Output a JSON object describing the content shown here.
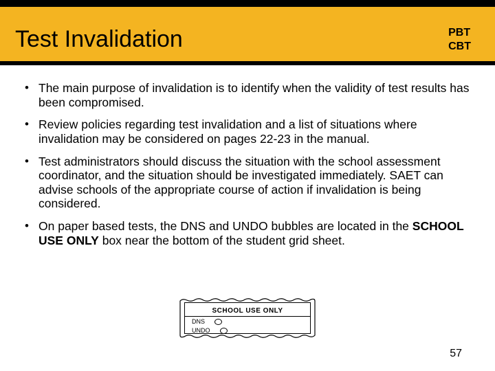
{
  "header": {
    "title": "Test Invalidation",
    "badge_line1": "PBT",
    "badge_line2": "CBT"
  },
  "bullets": [
    "The main purpose of invalidation is to identify when the validity of test results has been compromised.",
    "Review policies regarding test invalidation and a list of situations where invalidation may be considered on pages 22-23 in the manual.",
    "Test administrators should discuss the situation with the school assessment coordinator, and the situation should be investigated immediately. SAET can advise schools of the appropriate course of action if invalidation is being considered.",
    "On paper based tests, the DNS and UNDO bubbles are located in the <b>SCHOOL USE ONLY</b> box near the bottom of the student grid sheet."
  ],
  "graphic": {
    "heading": "SCHOOL USE ONLY",
    "row1_label": "DNS",
    "row2_label": "UNDO"
  },
  "page_number": "57",
  "colors": {
    "band": "#f4b421",
    "black": "#000000",
    "white": "#ffffff"
  }
}
